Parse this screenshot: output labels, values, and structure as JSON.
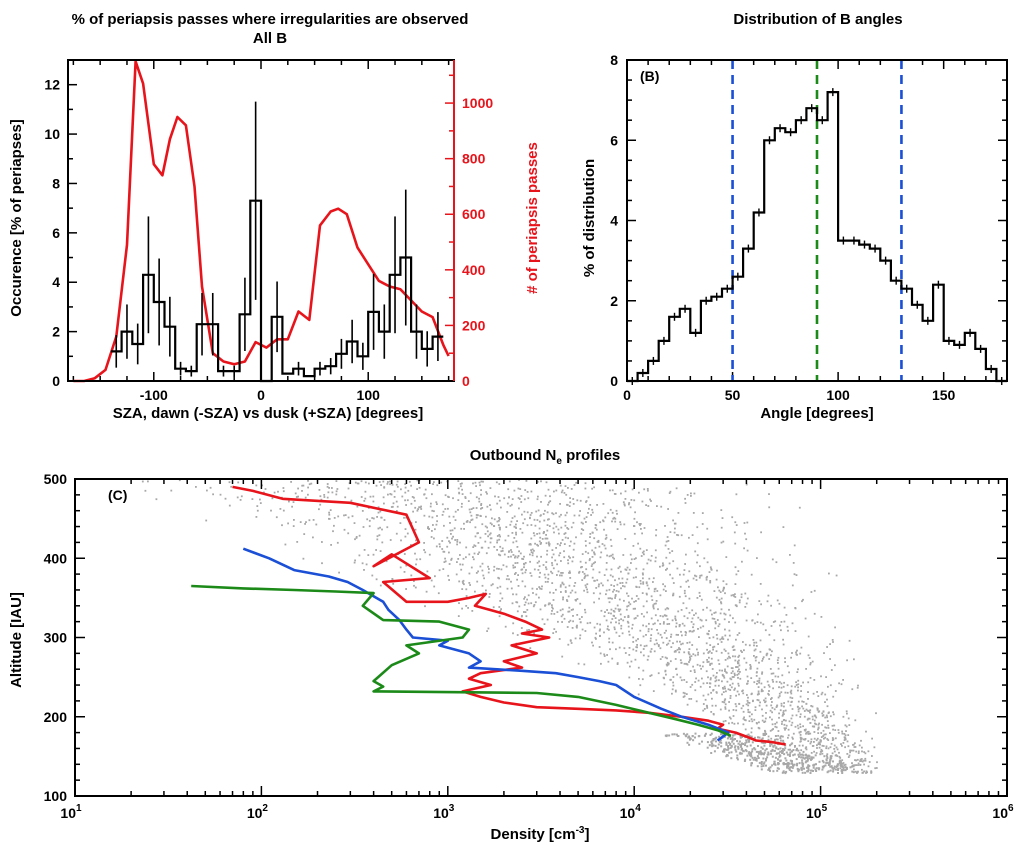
{
  "colors": {
    "black": "#000000",
    "red": "#e8141b",
    "blue": "#1a4fd6",
    "green": "#1c8a18",
    "gray": "#a8a8a8"
  },
  "chart_data": [
    {
      "id": "A",
      "type": "line",
      "title": "% of periapsis passes where irregularities are observed",
      "subtitle": "All B",
      "xlabel": "SZA, dawn (-SZA) vs dusk (+SZA) [degrees]",
      "ylabel": "Occurence [% of periapses]",
      "y2label": "# of periapsis passes",
      "xlim": [
        -180,
        180
      ],
      "ylim": [
        0,
        13
      ],
      "y2lim": [
        0,
        1155
      ],
      "xticks": [
        -100,
        0,
        100
      ],
      "yticks": [
        0,
        2,
        4,
        6,
        8,
        10,
        12
      ],
      "y2ticks": [
        0,
        200,
        400,
        600,
        800,
        1000
      ],
      "series": [
        {
          "color": "black",
          "axis": "left",
          "style": "step",
          "x": [
            -135,
            -125,
            -115,
            -105,
            -95,
            -85,
            -75,
            -65,
            -55,
            -45,
            -35,
            -25,
            -15,
            -5,
            5,
            15,
            25,
            35,
            45,
            55,
            65,
            75,
            85,
            95,
            105,
            115,
            125,
            135,
            145,
            155,
            165
          ],
          "y": [
            1.2,
            2.0,
            1.5,
            4.3,
            3.2,
            2.2,
            0.5,
            0.4,
            2.3,
            2.3,
            0.4,
            0.4,
            2.7,
            7.3,
            0.0,
            2.6,
            0.3,
            0.5,
            0.2,
            0.5,
            0.6,
            1.1,
            1.6,
            1.0,
            2.8,
            2.0,
            4.3,
            5.0,
            2.0,
            1.3,
            1.8
          ]
        },
        {
          "color": "red",
          "axis": "right",
          "style": "line",
          "x": [
            -175,
            -165,
            -155,
            -145,
            -135,
            -125,
            -117,
            -110,
            -100,
            -92,
            -85,
            -78,
            -70,
            -62,
            -55,
            -45,
            -35,
            -25,
            -15,
            -5,
            5,
            15,
            25,
            35,
            45,
            55,
            65,
            72,
            80,
            90,
            100,
            110,
            120,
            130,
            140,
            150,
            160,
            170,
            175
          ],
          "y": [
            0,
            0,
            10,
            40,
            160,
            490,
            1150,
            1070,
            780,
            740,
            870,
            950,
            920,
            700,
            340,
            100,
            70,
            60,
            70,
            140,
            120,
            150,
            150,
            250,
            220,
            560,
            610,
            620,
            600,
            480,
            420,
            360,
            340,
            330,
            290,
            250,
            230,
            130,
            90
          ]
        }
      ]
    },
    {
      "id": "B",
      "type": "line",
      "title": "Distribution of B angles",
      "panel_label": "(B)",
      "xlabel": "Angle [degrees]",
      "ylabel": "% of distribution",
      "xlim": [
        0,
        180
      ],
      "ylim": [
        0,
        8
      ],
      "xticks": [
        0,
        50,
        100,
        150
      ],
      "yticks": [
        0,
        2,
        4,
        6,
        8
      ],
      "vlines": [
        {
          "x": 50,
          "color": "blue"
        },
        {
          "x": 90,
          "color": "green"
        },
        {
          "x": 130,
          "color": "blue"
        }
      ],
      "series": [
        {
          "color": "black",
          "style": "step",
          "x": [
            2.5,
            7.5,
            12.5,
            17.5,
            22.5,
            27.5,
            32.5,
            37.5,
            42.5,
            47.5,
            52.5,
            57.5,
            62.5,
            67.5,
            72.5,
            77.5,
            82.5,
            87.5,
            92.5,
            97.5,
            102.5,
            107.5,
            112.5,
            117.5,
            122.5,
            127.5,
            132.5,
            137.5,
            142.5,
            147.5,
            152.5,
            157.5,
            162.5,
            167.5,
            172.5,
            177.5
          ],
          "y": [
            0.0,
            0.2,
            0.5,
            1.0,
            1.6,
            1.8,
            1.2,
            2.0,
            2.1,
            2.3,
            2.6,
            3.3,
            4.2,
            6.0,
            6.3,
            6.2,
            6.5,
            6.8,
            6.5,
            7.2,
            3.5,
            3.5,
            3.4,
            3.3,
            3.0,
            2.5,
            2.3,
            1.9,
            1.5,
            2.4,
            1.0,
            0.9,
            1.2,
            0.8,
            0.3,
            0.0
          ]
        }
      ]
    },
    {
      "id": "C",
      "type": "scatter",
      "title_main": "Outbound N",
      "title_sub": "e",
      "title_tail": " profiles",
      "panel_label": "(C)",
      "xlabel_main": "Density [cm",
      "xlabel_sup": "-3",
      "xlabel_tail": "]",
      "ylabel": "Altitude [IAU]",
      "xscale": "log",
      "xlim": [
        10,
        1000000
      ],
      "ylim": [
        100,
        500
      ],
      "yticks": [
        100,
        200,
        300,
        400,
        500
      ],
      "xtick_labels": [
        {
          "base": "10",
          "exp": "1"
        },
        {
          "base": "10",
          "exp": "2"
        },
        {
          "base": "10",
          "exp": "3"
        },
        {
          "base": "10",
          "exp": "4"
        },
        {
          "base": "10",
          "exp": "5"
        },
        {
          "base": "10",
          "exp": "6"
        }
      ],
      "series": [
        {
          "color": "red",
          "style": "line",
          "x": [
            70,
            90,
            130,
            300,
            600,
            700,
            400,
            500,
            800,
            450,
            600,
            1000,
            1300,
            1600,
            1400,
            2000,
            2600,
            3200,
            2500,
            3500,
            2200,
            3000,
            2000,
            2500,
            1500,
            1300,
            1700,
            1200,
            1500,
            2000,
            3000,
            5000,
            8000,
            12000,
            18000,
            25000,
            30000,
            28000,
            35000,
            40000,
            45000,
            55000,
            65000
          ],
          "y": [
            490,
            485,
            475,
            470,
            455,
            420,
            390,
            405,
            375,
            370,
            345,
            345,
            350,
            355,
            340,
            330,
            320,
            310,
            305,
            300,
            290,
            280,
            270,
            262,
            255,
            248,
            240,
            232,
            225,
            218,
            212,
            210,
            208,
            205,
            200,
            195,
            190,
            185,
            180,
            175,
            170,
            168,
            165
          ]
        },
        {
          "color": "blue",
          "style": "line",
          "x": [
            80,
            110,
            150,
            230,
            290,
            350,
            450,
            480,
            550,
            600,
            650,
            1000,
            900,
            1300,
            1500,
            1300,
            2500,
            3800,
            5000,
            6500,
            8000,
            10000,
            14000,
            18000,
            25000,
            32000,
            28000
          ],
          "y": [
            412,
            400,
            385,
            377,
            370,
            360,
            345,
            335,
            322,
            310,
            300,
            296,
            290,
            280,
            270,
            262,
            258,
            255,
            250,
            245,
            240,
            225,
            210,
            200,
            190,
            180,
            170
          ]
        },
        {
          "color": "green",
          "style": "line",
          "x": [
            42,
            80,
            150,
            250,
            400,
            350,
            450,
            900,
            1300,
            1200,
            600,
            700,
            500,
            400,
            450,
            400,
            3000,
            5000,
            8000,
            12000,
            16000,
            22000,
            28000,
            33000
          ],
          "y": [
            365,
            362,
            360,
            358,
            356,
            340,
            322,
            320,
            310,
            300,
            290,
            280,
            265,
            245,
            238,
            232,
            230,
            225,
            215,
            205,
            198,
            190,
            183,
            176
          ]
        }
      ]
    }
  ]
}
